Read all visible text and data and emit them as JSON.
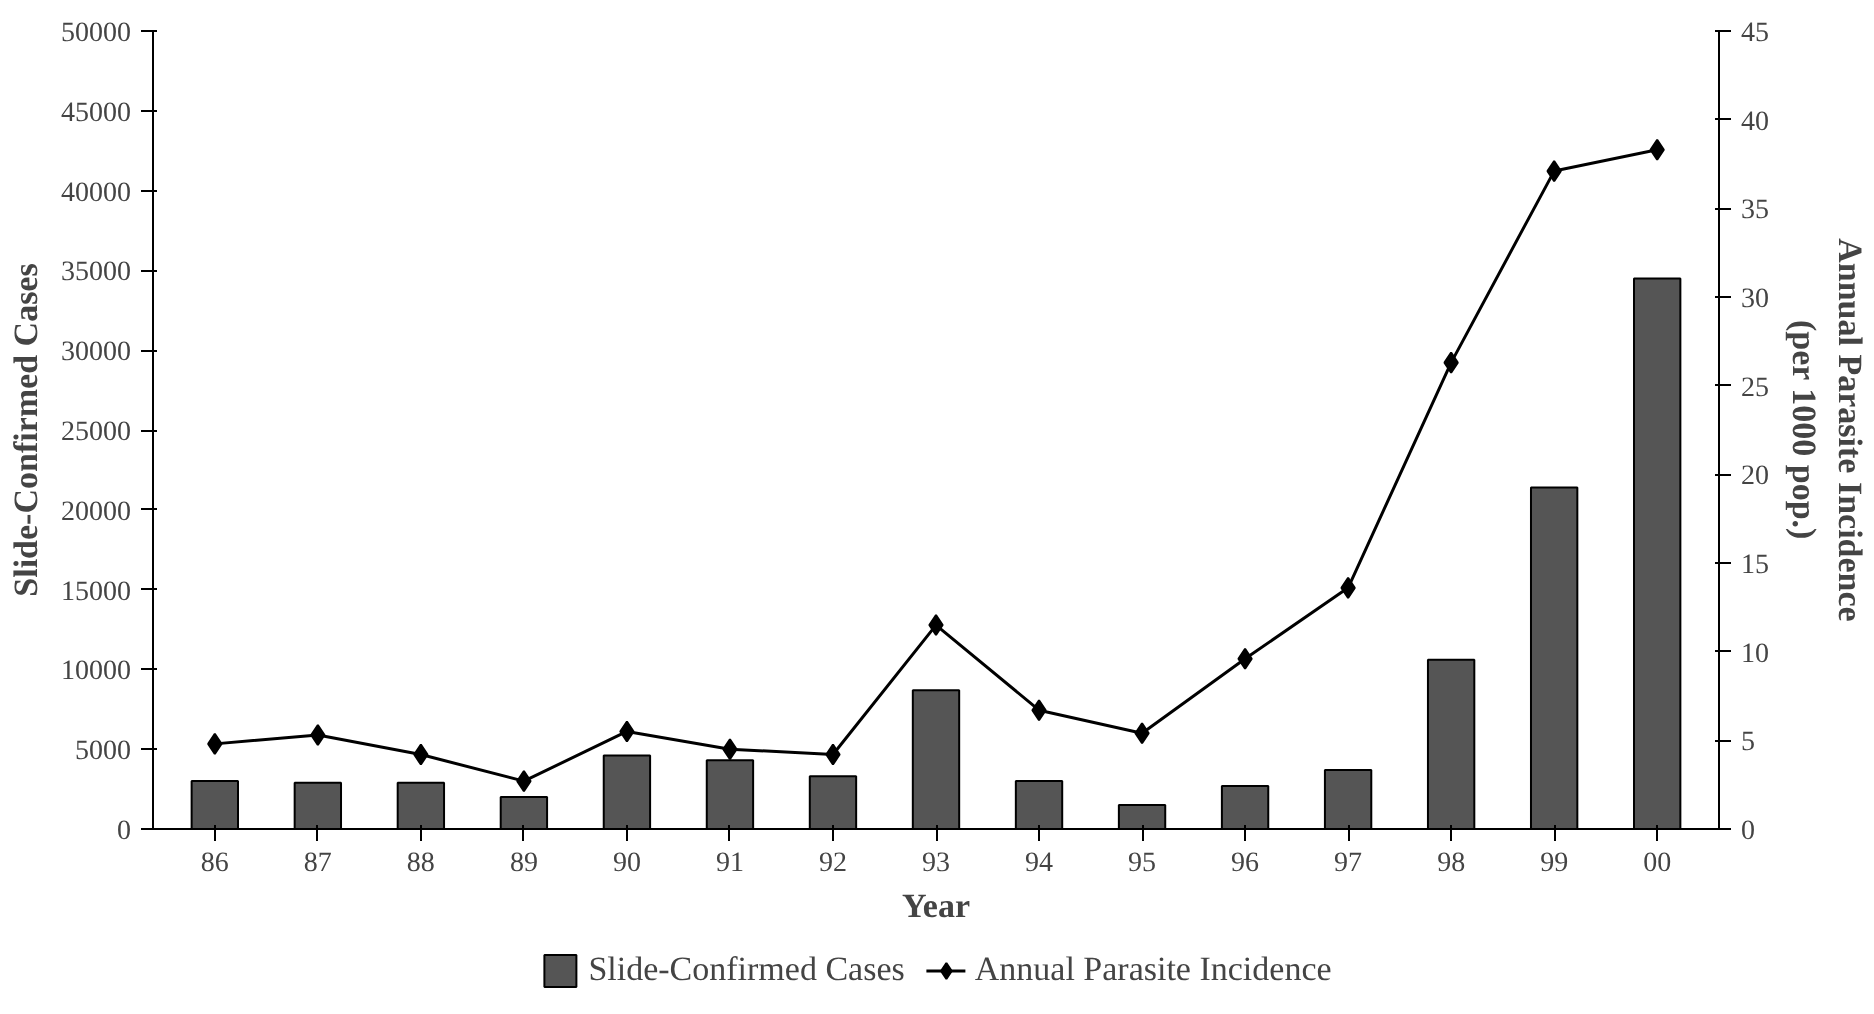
{
  "chart_data": {
    "type": "bar",
    "xlabel": "Year",
    "ylabel": "Slide-Confirmed Cases",
    "y2label": "Annual Parasite Incidence\n(per 1000 pop.)",
    "categories": [
      "86",
      "87",
      "88",
      "89",
      "90",
      "91",
      "92",
      "93",
      "94",
      "95",
      "96",
      "97",
      "98",
      "99",
      "00"
    ],
    "series": [
      {
        "name": "Slide-Confirmed Cases",
        "color": "#555555",
        "values": [
          3000,
          2900,
          2900,
          2000,
          4600,
          4300,
          3300,
          8700,
          3000,
          1500,
          2700,
          3700,
          10600,
          21400,
          34500
        ]
      },
      {
        "name": "Annual Parasite Incidence",
        "type": "line",
        "axis": "y2",
        "color": "#000000",
        "marker": "diamond",
        "values": [
          4.8,
          5.3,
          4.2,
          2.7,
          5.5,
          4.5,
          4.2,
          11.5,
          6.7,
          5.4,
          9.6,
          13.6,
          26.3,
          37.1,
          38.3
        ]
      }
    ],
    "ylim": [
      0,
      50000
    ],
    "yticks": [
      0,
      5000,
      10000,
      15000,
      20000,
      25000,
      30000,
      35000,
      40000,
      45000,
      50000
    ],
    "y2lim": [
      0,
      45
    ],
    "y2ticks": [
      0,
      5,
      10,
      15,
      20,
      25,
      30,
      35,
      40,
      45
    ],
    "grid": false,
    "legend": "bottom"
  }
}
